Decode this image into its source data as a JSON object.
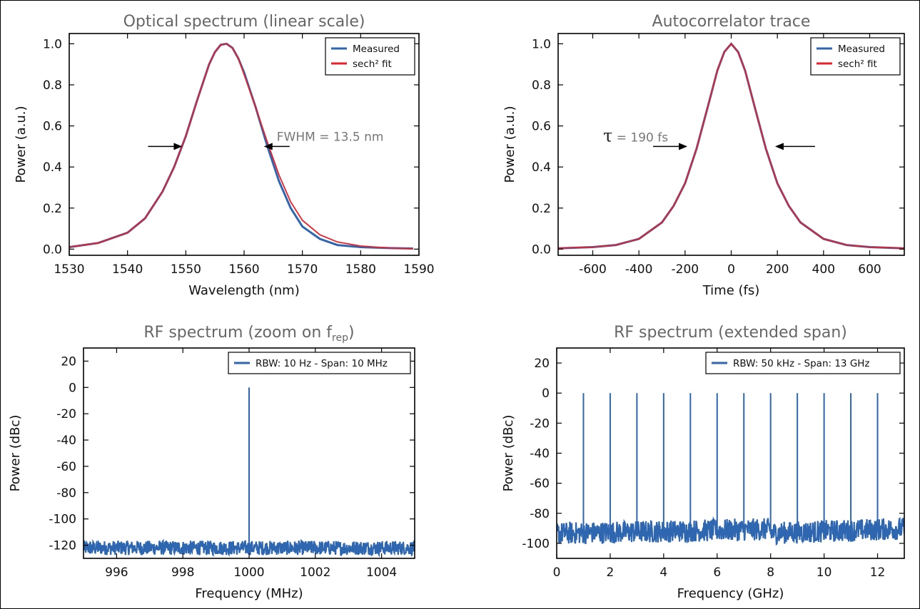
{
  "colors": {
    "measured": "#2f66b0",
    "fit": "#e8202a",
    "axis": "#000000",
    "title": "#666666"
  },
  "chart_data": [
    {
      "type": "line",
      "title": "Optical spectrum (linear scale)",
      "xlabel": "Wavelength (nm)",
      "ylabel": "Power (a.u.)",
      "xlim": [
        1530,
        1590
      ],
      "ylim": [
        -0.03,
        1.05
      ],
      "xticks": [
        1530,
        1540,
        1550,
        1560,
        1570,
        1580,
        1590
      ],
      "yticks": [
        0.0,
        0.2,
        0.4,
        0.6,
        0.8,
        1.0
      ],
      "xtick_labels": [
        "1530",
        "1540",
        "1550",
        "1560",
        "1570",
        "1580",
        "1590"
      ],
      "ytick_labels": [
        "0.0",
        "0.2",
        "0.4",
        "0.6",
        "0.8",
        "1.0"
      ],
      "legend": {
        "position": "top-right",
        "entries": [
          "Measured",
          "sech² fit"
        ]
      },
      "annotation": {
        "text": "FWHM = 13.5 nm"
      },
      "series": [
        {
          "name": "Measured",
          "x": [
            1530,
            1535,
            1540,
            1543,
            1546,
            1548,
            1550,
            1552,
            1554,
            1555,
            1556,
            1557,
            1558,
            1559,
            1560,
            1562,
            1564,
            1566,
            1568,
            1570,
            1573,
            1576,
            1580,
            1585,
            1589
          ],
          "y": [
            0.01,
            0.03,
            0.08,
            0.15,
            0.28,
            0.4,
            0.55,
            0.73,
            0.9,
            0.96,
            0.995,
            1.0,
            0.98,
            0.93,
            0.86,
            0.69,
            0.5,
            0.33,
            0.2,
            0.11,
            0.05,
            0.02,
            0.01,
            0.005,
            0.003
          ]
        },
        {
          "name": "sech² fit",
          "x": [
            1530,
            1535,
            1540,
            1543,
            1546,
            1548,
            1550,
            1552,
            1554,
            1555,
            1556,
            1557,
            1558,
            1559,
            1560,
            1562,
            1564,
            1566,
            1568,
            1570,
            1573,
            1576,
            1580,
            1585,
            1589
          ],
          "y": [
            0.01,
            0.03,
            0.08,
            0.15,
            0.28,
            0.4,
            0.55,
            0.73,
            0.9,
            0.96,
            0.995,
            1.0,
            0.98,
            0.93,
            0.85,
            0.69,
            0.52,
            0.36,
            0.23,
            0.14,
            0.07,
            0.035,
            0.015,
            0.005,
            0.002
          ]
        }
      ]
    },
    {
      "type": "line",
      "title": "Autocorrelator trace",
      "xlabel": "Time (fs)",
      "ylabel": "Power (a.u.)",
      "xlim": [
        -750,
        750
      ],
      "ylim": [
        -0.03,
        1.05
      ],
      "xticks": [
        -600,
        -400,
        -200,
        0,
        200,
        400,
        600
      ],
      "yticks": [
        0.0,
        0.2,
        0.4,
        0.6,
        0.8,
        1.0
      ],
      "xtick_labels": [
        "-600",
        "-400",
        "-200",
        "0",
        "200",
        "400",
        "600"
      ],
      "ytick_labels": [
        "0.0",
        "0.2",
        "0.4",
        "0.6",
        "0.8",
        "1.0"
      ],
      "legend": {
        "position": "top-right",
        "entries": [
          "Measured",
          "sech² fit"
        ]
      },
      "annotation": {
        "symbol": "τ",
        "text": " = 190 fs"
      },
      "series": [
        {
          "name": "Measured",
          "x": [
            -750,
            -600,
            -500,
            -400,
            -300,
            -250,
            -200,
            -150,
            -100,
            -60,
            -30,
            0,
            30,
            60,
            100,
            150,
            200,
            250,
            300,
            400,
            500,
            600,
            750
          ],
          "y": [
            0.004,
            0.01,
            0.02,
            0.05,
            0.13,
            0.21,
            0.32,
            0.49,
            0.7,
            0.87,
            0.96,
            1.0,
            0.96,
            0.87,
            0.7,
            0.49,
            0.32,
            0.21,
            0.13,
            0.05,
            0.02,
            0.01,
            0.004
          ]
        },
        {
          "name": "sech² fit",
          "x": [
            -750,
            -600,
            -500,
            -400,
            -300,
            -250,
            -200,
            -150,
            -100,
            -60,
            -30,
            0,
            30,
            60,
            100,
            150,
            200,
            250,
            300,
            400,
            500,
            600,
            750
          ],
          "y": [
            0.004,
            0.01,
            0.02,
            0.05,
            0.13,
            0.21,
            0.32,
            0.49,
            0.7,
            0.87,
            0.96,
            1.0,
            0.96,
            0.87,
            0.7,
            0.49,
            0.32,
            0.21,
            0.13,
            0.05,
            0.02,
            0.01,
            0.004
          ]
        }
      ]
    },
    {
      "type": "line",
      "title_main": "RF spectrum (zoom on f",
      "title_sub": "rep",
      "title_end": ")",
      "xlabel": "Frequency (MHz)",
      "ylabel": "Power (dBc)",
      "xlim": [
        995,
        1005
      ],
      "ylim": [
        -130,
        30
      ],
      "xticks": [
        996,
        998,
        1000,
        1002,
        1004
      ],
      "yticks": [
        20,
        0,
        -20,
        -40,
        -60,
        -80,
        -100,
        -120
      ],
      "xtick_labels": [
        "996",
        "998",
        "1000",
        "1002",
        "1004"
      ],
      "ytick_labels": [
        "20",
        "0",
        "-20",
        "-40",
        "-60",
        "-80",
        "-100",
        "-120"
      ],
      "legend": {
        "position": "top-right",
        "entries": [
          "RBW: 10 Hz - Span: 10 MHz"
        ]
      },
      "series": [
        {
          "name": "RBW: 10 Hz - Span: 10 MHz",
          "noise_floor": -122,
          "noise_range": [
            -127,
            -116
          ],
          "peaks": [
            {
              "x": 1000,
              "y": 0
            }
          ]
        }
      ]
    },
    {
      "type": "line",
      "title": "RF spectrum (extended span)",
      "xlabel": "Frequency (GHz)",
      "ylabel": "Power (dBc)",
      "xlim": [
        0,
        13
      ],
      "ylim": [
        -110,
        30
      ],
      "xticks": [
        0,
        2,
        4,
        6,
        8,
        10,
        12
      ],
      "yticks": [
        20,
        0,
        -20,
        -40,
        -60,
        -80,
        -100
      ],
      "xtick_labels": [
        "0",
        "2",
        "4",
        "6",
        "8",
        "10",
        "12"
      ],
      "ytick_labels": [
        "20",
        "0",
        "-20",
        "-40",
        "-60",
        "-80",
        "-100"
      ],
      "legend": {
        "position": "top-right",
        "entries": [
          "RBW: 50 kHz - Span: 13 GHz"
        ]
      },
      "series": [
        {
          "name": "RBW: 50 kHz - Span: 13 GHz",
          "noise_floor": -92,
          "noise_range": [
            -100,
            -85
          ],
          "peaks": [
            {
              "x": 1,
              "y": 0
            },
            {
              "x": 2,
              "y": 0
            },
            {
              "x": 3,
              "y": 0
            },
            {
              "x": 4,
              "y": 0
            },
            {
              "x": 5,
              "y": 0
            },
            {
              "x": 6,
              "y": 0
            },
            {
              "x": 7,
              "y": 0
            },
            {
              "x": 8,
              "y": 0
            },
            {
              "x": 9,
              "y": 0
            },
            {
              "x": 10,
              "y": 0
            },
            {
              "x": 11,
              "y": 0
            },
            {
              "x": 12,
              "y": 0
            }
          ]
        }
      ]
    }
  ]
}
